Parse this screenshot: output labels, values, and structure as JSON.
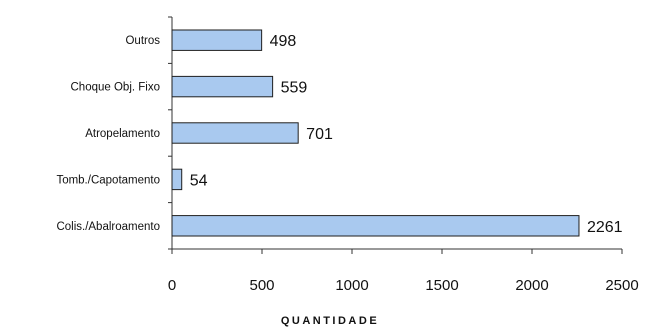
{
  "chart_data": {
    "type": "bar",
    "orientation": "horizontal",
    "categories": [
      "Outros",
      "Choque Obj. Fixo",
      "Atropelamento",
      "Tomb./Capotamento",
      "Colis./Abalroamento"
    ],
    "values": [
      498,
      559,
      701,
      54,
      2261
    ],
    "xlabel": "QUANTIDADE",
    "xlim": [
      0,
      2500
    ],
    "xticks": [
      0,
      500,
      1000,
      1500,
      2000,
      2500
    ],
    "grid": false,
    "legend": "none",
    "bar_color": "#a9c9ef",
    "bar_edge_color": "#1f1f1f"
  }
}
